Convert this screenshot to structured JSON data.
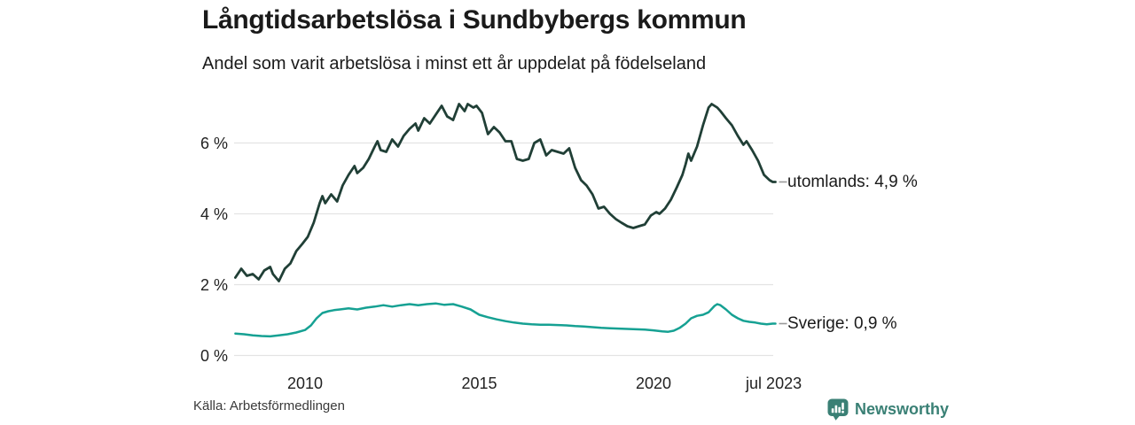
{
  "header": {
    "title": "Långtidsarbetslösa i Sundbybergs kommun",
    "subtitle": "Andel som varit arbetslösa i minst ett år uppdelat på födelseland"
  },
  "footer": {
    "source": "Källa: Arbetsförmedlingen",
    "brand": "Newsworthy"
  },
  "colors": {
    "utomlands": "#203f36",
    "sverige": "#16a193",
    "grid": "#e3e3e3",
    "connector": "#999999",
    "text": "#1a1a1a",
    "brand": "#3a8075"
  },
  "chart_data": {
    "type": "line",
    "title": "Långtidsarbetslösa i Sundbybergs kommun",
    "subtitle": "Andel som varit arbetslösa i minst ett år uppdelat på födelseland",
    "xlabel": "",
    "ylabel": "%",
    "ylim": [
      0,
      7.4
    ],
    "xlim": [
      2008.0,
      2023.58
    ],
    "grid": "horizontal",
    "legend_position": "right-end-labels",
    "y_ticks": [
      {
        "label": "6 %",
        "value": 6
      },
      {
        "label": "4 %",
        "value": 4
      },
      {
        "label": "2 %",
        "value": 2
      },
      {
        "label": "0 %",
        "value": 0
      }
    ],
    "x_ticks": [
      {
        "label": "2010",
        "year": 2010
      },
      {
        "label": "2015",
        "year": 2015
      },
      {
        "label": "2020",
        "year": 2020
      },
      {
        "label": "jul 2023",
        "year": 2023.45
      }
    ],
    "series": [
      {
        "name": "utomlands",
        "label": "utomlands: 4,9 %",
        "end_value": 4.9,
        "color_key": "utomlands",
        "points": [
          [
            2008.0,
            2.2
          ],
          [
            2008.17,
            2.45
          ],
          [
            2008.33,
            2.25
          ],
          [
            2008.5,
            2.3
          ],
          [
            2008.67,
            2.15
          ],
          [
            2008.83,
            2.4
          ],
          [
            2009.0,
            2.5
          ],
          [
            2009.08,
            2.3
          ],
          [
            2009.25,
            2.1
          ],
          [
            2009.42,
            2.45
          ],
          [
            2009.58,
            2.6
          ],
          [
            2009.75,
            2.95
          ],
          [
            2009.92,
            3.15
          ],
          [
            2010.08,
            3.35
          ],
          [
            2010.25,
            3.75
          ],
          [
            2010.42,
            4.3
          ],
          [
            2010.5,
            4.5
          ],
          [
            2010.58,
            4.3
          ],
          [
            2010.75,
            4.55
          ],
          [
            2010.92,
            4.35
          ],
          [
            2011.08,
            4.8
          ],
          [
            2011.25,
            5.1
          ],
          [
            2011.42,
            5.35
          ],
          [
            2011.5,
            5.15
          ],
          [
            2011.67,
            5.3
          ],
          [
            2011.83,
            5.55
          ],
          [
            2012.0,
            5.9
          ],
          [
            2012.08,
            6.05
          ],
          [
            2012.17,
            5.8
          ],
          [
            2012.33,
            5.75
          ],
          [
            2012.5,
            6.1
          ],
          [
            2012.67,
            5.9
          ],
          [
            2012.83,
            6.2
          ],
          [
            2013.0,
            6.4
          ],
          [
            2013.17,
            6.55
          ],
          [
            2013.25,
            6.35
          ],
          [
            2013.42,
            6.7
          ],
          [
            2013.58,
            6.55
          ],
          [
            2013.75,
            6.8
          ],
          [
            2013.92,
            7.05
          ],
          [
            2014.08,
            6.75
          ],
          [
            2014.25,
            6.65
          ],
          [
            2014.42,
            7.1
          ],
          [
            2014.58,
            6.9
          ],
          [
            2014.67,
            7.1
          ],
          [
            2014.83,
            7.0
          ],
          [
            2014.92,
            7.05
          ],
          [
            2015.08,
            6.85
          ],
          [
            2015.25,
            6.25
          ],
          [
            2015.42,
            6.45
          ],
          [
            2015.58,
            6.3
          ],
          [
            2015.75,
            6.05
          ],
          [
            2015.92,
            6.05
          ],
          [
            2016.08,
            5.55
          ],
          [
            2016.25,
            5.5
          ],
          [
            2016.42,
            5.55
          ],
          [
            2016.58,
            6.0
          ],
          [
            2016.75,
            6.1
          ],
          [
            2016.92,
            5.65
          ],
          [
            2017.08,
            5.8
          ],
          [
            2017.25,
            5.75
          ],
          [
            2017.42,
            5.7
          ],
          [
            2017.58,
            5.85
          ],
          [
            2017.75,
            5.3
          ],
          [
            2017.92,
            4.95
          ],
          [
            2018.08,
            4.8
          ],
          [
            2018.25,
            4.55
          ],
          [
            2018.42,
            4.15
          ],
          [
            2018.58,
            4.2
          ],
          [
            2018.75,
            4.0
          ],
          [
            2018.92,
            3.85
          ],
          [
            2019.08,
            3.75
          ],
          [
            2019.25,
            3.65
          ],
          [
            2019.42,
            3.6
          ],
          [
            2019.58,
            3.65
          ],
          [
            2019.75,
            3.7
          ],
          [
            2019.92,
            3.95
          ],
          [
            2020.08,
            4.05
          ],
          [
            2020.17,
            4.0
          ],
          [
            2020.33,
            4.15
          ],
          [
            2020.5,
            4.4
          ],
          [
            2020.67,
            4.75
          ],
          [
            2020.83,
            5.1
          ],
          [
            2020.92,
            5.4
          ],
          [
            2021.0,
            5.7
          ],
          [
            2021.08,
            5.5
          ],
          [
            2021.25,
            5.9
          ],
          [
            2021.42,
            6.5
          ],
          [
            2021.58,
            7.0
          ],
          [
            2021.67,
            7.1
          ],
          [
            2021.83,
            7.0
          ],
          [
            2021.92,
            6.9
          ],
          [
            2022.08,
            6.7
          ],
          [
            2022.25,
            6.5
          ],
          [
            2022.42,
            6.2
          ],
          [
            2022.58,
            5.95
          ],
          [
            2022.67,
            6.05
          ],
          [
            2022.83,
            5.8
          ],
          [
            2023.0,
            5.5
          ],
          [
            2023.17,
            5.1
          ],
          [
            2023.33,
            4.95
          ],
          [
            2023.42,
            4.9
          ],
          [
            2023.5,
            4.9
          ]
        ]
      },
      {
        "name": "Sverige",
        "label": "Sverige: 0,9 %",
        "end_value": 0.9,
        "color_key": "sverige",
        "points": [
          [
            2008.0,
            0.62
          ],
          [
            2008.25,
            0.6
          ],
          [
            2008.5,
            0.57
          ],
          [
            2008.75,
            0.55
          ],
          [
            2009.0,
            0.54
          ],
          [
            2009.25,
            0.57
          ],
          [
            2009.5,
            0.6
          ],
          [
            2009.75,
            0.65
          ],
          [
            2010.0,
            0.72
          ],
          [
            2010.17,
            0.85
          ],
          [
            2010.33,
            1.05
          ],
          [
            2010.5,
            1.2
          ],
          [
            2010.67,
            1.25
          ],
          [
            2010.83,
            1.28
          ],
          [
            2011.0,
            1.3
          ],
          [
            2011.25,
            1.33
          ],
          [
            2011.5,
            1.3
          ],
          [
            2011.75,
            1.35
          ],
          [
            2012.0,
            1.38
          ],
          [
            2012.25,
            1.42
          ],
          [
            2012.5,
            1.38
          ],
          [
            2012.75,
            1.42
          ],
          [
            2013.0,
            1.45
          ],
          [
            2013.25,
            1.42
          ],
          [
            2013.5,
            1.45
          ],
          [
            2013.75,
            1.47
          ],
          [
            2014.0,
            1.43
          ],
          [
            2014.25,
            1.45
          ],
          [
            2014.5,
            1.38
          ],
          [
            2014.75,
            1.3
          ],
          [
            2015.0,
            1.15
          ],
          [
            2015.25,
            1.08
          ],
          [
            2015.5,
            1.02
          ],
          [
            2015.75,
            0.97
          ],
          [
            2016.0,
            0.93
          ],
          [
            2016.25,
            0.9
          ],
          [
            2016.5,
            0.88
          ],
          [
            2016.75,
            0.87
          ],
          [
            2017.0,
            0.87
          ],
          [
            2017.25,
            0.86
          ],
          [
            2017.5,
            0.85
          ],
          [
            2017.75,
            0.83
          ],
          [
            2018.0,
            0.82
          ],
          [
            2018.25,
            0.8
          ],
          [
            2018.5,
            0.78
          ],
          [
            2018.75,
            0.77
          ],
          [
            2019.0,
            0.76
          ],
          [
            2019.25,
            0.75
          ],
          [
            2019.5,
            0.74
          ],
          [
            2019.75,
            0.73
          ],
          [
            2020.0,
            0.71
          ],
          [
            2020.25,
            0.68
          ],
          [
            2020.42,
            0.67
          ],
          [
            2020.58,
            0.7
          ],
          [
            2020.75,
            0.78
          ],
          [
            2020.92,
            0.9
          ],
          [
            2021.08,
            1.05
          ],
          [
            2021.25,
            1.12
          ],
          [
            2021.42,
            1.15
          ],
          [
            2021.58,
            1.22
          ],
          [
            2021.75,
            1.4
          ],
          [
            2021.83,
            1.45
          ],
          [
            2021.92,
            1.42
          ],
          [
            2022.08,
            1.3
          ],
          [
            2022.25,
            1.15
          ],
          [
            2022.42,
            1.05
          ],
          [
            2022.58,
            0.98
          ],
          [
            2022.75,
            0.95
          ],
          [
            2022.92,
            0.93
          ],
          [
            2023.08,
            0.9
          ],
          [
            2023.25,
            0.88
          ],
          [
            2023.42,
            0.9
          ],
          [
            2023.5,
            0.9
          ]
        ]
      }
    ]
  }
}
